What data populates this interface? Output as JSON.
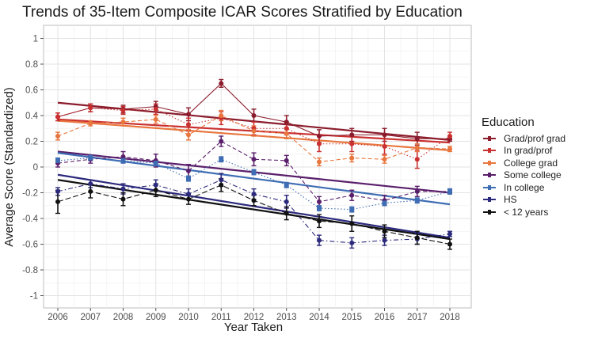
{
  "chart_data": {
    "type": "line",
    "title": "Trends of 35-Item Composite ICAR Scores Stratified by Education",
    "xlabel": "Year Taken",
    "ylabel": "Average Score (Standardized)",
    "ylim": [
      -1,
      1
    ],
    "yticks": [
      1,
      0.8,
      0.6,
      0.4,
      0.2,
      0,
      -0.2,
      -0.4,
      -0.6,
      -0.8,
      -1
    ],
    "ytick_labels": [
      "1",
      "0.8",
      "0.6",
      "0.4",
      "0.2",
      "0",
      "-0.2",
      "-0.4",
      "-0.6",
      "-0.8",
      "-1"
    ],
    "x": [
      2006,
      2007,
      2008,
      2009,
      2010,
      2011,
      2012,
      2013,
      2014,
      2015,
      2016,
      2017,
      2018
    ],
    "xtick_labels": [
      "2006",
      "2007",
      "2008",
      "2009",
      "2010",
      "2011",
      "2012",
      "2013",
      "2014",
      "2015",
      "2016",
      "2017",
      "2018"
    ],
    "grid": true,
    "legend": {
      "title": "Education",
      "placement": "right"
    },
    "series": [
      {
        "name": "Grad/prof grad",
        "color": "#8b1c2c",
        "dash": "solid",
        "values": [
          0.39,
          0.46,
          0.45,
          0.47,
          0.41,
          0.65,
          0.4,
          0.35,
          0.24,
          0.25,
          0.25,
          0.22,
          0.22
        ],
        "error": [
          0.03,
          0.03,
          0.03,
          0.04,
          0.05,
          0.03,
          0.05,
          0.05,
          0.05,
          0.05,
          0.05,
          0.05,
          0.02
        ],
        "trend": [
          0.5,
          0.21
        ]
      },
      {
        "name": "In grad/prof",
        "color": "#c9302f",
        "dash": "dotted",
        "values": [
          0.39,
          0.46,
          0.44,
          0.45,
          0.33,
          0.38,
          0.3,
          0.3,
          0.18,
          0.18,
          0.16,
          0.06,
          0.24
        ],
        "error": [
          0.03,
          0.03,
          0.03,
          0.04,
          0.05,
          0.05,
          0.05,
          0.05,
          0.06,
          0.06,
          0.06,
          0.07,
          0.03
        ],
        "trend": [
          0.37,
          0.19
        ]
      },
      {
        "name": "College grad",
        "color": "#e8763e",
        "dash": "dashed",
        "values": [
          0.24,
          0.34,
          0.35,
          0.37,
          0.25,
          0.4,
          0.28,
          0.26,
          0.04,
          0.07,
          0.06,
          0.15,
          0.14
        ],
        "error": [
          0.03,
          0.02,
          0.03,
          0.03,
          0.04,
          0.04,
          0.04,
          0.04,
          0.03,
          0.03,
          0.03,
          0.03,
          0.02
        ],
        "trend": [
          0.36,
          0.13
        ]
      },
      {
        "name": "Some college",
        "color": "#5a1f6b",
        "dash": "dashed",
        "values": [
          0.03,
          0.06,
          0.08,
          0.05,
          -0.03,
          0.2,
          0.06,
          0.05,
          -0.27,
          -0.22,
          -0.26,
          -0.19,
          -0.19
        ],
        "error": [
          0.03,
          0.03,
          0.04,
          0.05,
          0.05,
          0.04,
          0.05,
          0.04,
          0.04,
          0.04,
          0.04,
          0.04,
          0.02
        ],
        "trend": [
          0.12,
          -0.2
        ]
      },
      {
        "name": "In college",
        "color": "#3e6db3",
        "dash": "dotted",
        "values": [
          0.05,
          0.07,
          0.05,
          0.03,
          -0.09,
          0.06,
          -0.04,
          -0.14,
          -0.32,
          -0.33,
          -0.28,
          -0.26,
          -0.19
        ],
        "error": [
          0.02,
          0.02,
          0.02,
          0.02,
          0.02,
          0.02,
          0.02,
          0.02,
          0.02,
          0.02,
          0.02,
          0.02,
          0.02
        ],
        "trend": [
          0.11,
          -0.29
        ]
      },
      {
        "name": "HS",
        "color": "#2c2a7c",
        "dash": "dashdot",
        "values": [
          -0.19,
          -0.13,
          -0.17,
          -0.14,
          -0.21,
          -0.1,
          -0.21,
          -0.27,
          -0.57,
          -0.59,
          -0.57,
          -0.56,
          -0.52
        ],
        "error": [
          0.03,
          0.03,
          0.04,
          0.04,
          0.04,
          0.05,
          0.04,
          0.05,
          0.04,
          0.04,
          0.04,
          0.04,
          0.02
        ],
        "trend": [
          -0.06,
          -0.55
        ]
      },
      {
        "name": "< 12 years",
        "color": "#111111",
        "dash": "longdash",
        "values": [
          -0.27,
          -0.19,
          -0.25,
          -0.18,
          -0.25,
          -0.14,
          -0.26,
          -0.36,
          -0.42,
          -0.44,
          -0.5,
          -0.55,
          -0.6
        ],
        "error": [
          0.09,
          0.05,
          0.05,
          0.05,
          0.04,
          0.05,
          0.04,
          0.05,
          0.05,
          0.06,
          0.05,
          0.05,
          0.04
        ],
        "trend": [
          -0.1,
          -0.56
        ]
      }
    ]
  }
}
